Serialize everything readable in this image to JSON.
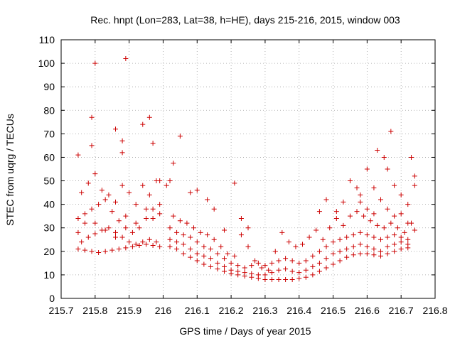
{
  "chart_data": {
    "type": "scatter",
    "title": "Rec. hnpt (Lon=283, Lat=38, h=HE), days 215-216, 2015, window 003",
    "xlabel": "GPS time / Days of year 2015",
    "ylabel": "STEC from uqrg / TECUs",
    "xlim": [
      215.7,
      216.8
    ],
    "ylim": [
      0,
      110
    ],
    "xticks": [
      "215.7",
      "215.8",
      "215.9",
      "216",
      "216.1",
      "216.2",
      "216.3",
      "216.4",
      "216.5",
      "216.6",
      "216.7",
      "216.8"
    ],
    "yticks": [
      "0",
      "10",
      "20",
      "30",
      "40",
      "50",
      "60",
      "70",
      "80",
      "90",
      "100",
      "110"
    ],
    "grid": true,
    "marker": "+",
    "color": "#cc0000",
    "points": [
      [
        215.75,
        21
      ],
      [
        215.77,
        20.5
      ],
      [
        215.79,
        20
      ],
      [
        215.81,
        19.5
      ],
      [
        215.83,
        20
      ],
      [
        215.85,
        20.5
      ],
      [
        215.87,
        21
      ],
      [
        215.89,
        21.5
      ],
      [
        215.91,
        22
      ],
      [
        215.93,
        22.5
      ],
      [
        215.95,
        23
      ],
      [
        215.97,
        22.5
      ],
      [
        215.99,
        22
      ],
      [
        215.76,
        24
      ],
      [
        215.78,
        26
      ],
      [
        215.8,
        27.5
      ],
      [
        215.82,
        29
      ],
      [
        215.84,
        30
      ],
      [
        215.86,
        28
      ],
      [
        215.88,
        26
      ],
      [
        215.9,
        24
      ],
      [
        215.92,
        23
      ],
      [
        215.94,
        24
      ],
      [
        215.96,
        25
      ],
      [
        215.98,
        24
      ],
      [
        215.75,
        34
      ],
      [
        215.77,
        36
      ],
      [
        215.79,
        38
      ],
      [
        215.81,
        40
      ],
      [
        215.83,
        42
      ],
      [
        215.85,
        37
      ],
      [
        215.87,
        33
      ],
      [
        215.89,
        30
      ],
      [
        215.91,
        28
      ],
      [
        215.93,
        30
      ],
      [
        215.95,
        34
      ],
      [
        215.97,
        38
      ],
      [
        215.99,
        36
      ],
      [
        215.76,
        45
      ],
      [
        215.78,
        49
      ],
      [
        215.8,
        53
      ],
      [
        215.82,
        46
      ],
      [
        215.84,
        44
      ],
      [
        215.86,
        41
      ],
      [
        215.88,
        48
      ],
      [
        215.9,
        45
      ],
      [
        215.92,
        40
      ],
      [
        215.94,
        48
      ],
      [
        215.96,
        44
      ],
      [
        215.98,
        50
      ],
      [
        215.75,
        61
      ],
      [
        215.79,
        65
      ],
      [
        215.79,
        77
      ],
      [
        215.8,
        100
      ],
      [
        215.86,
        72
      ],
      [
        215.88,
        62
      ],
      [
        215.88,
        67
      ],
      [
        215.89,
        102
      ],
      [
        215.94,
        74
      ],
      [
        215.96,
        77
      ],
      [
        215.97,
        66
      ],
      [
        215.99,
        50
      ],
      [
        215.75,
        28
      ],
      [
        215.77,
        32
      ],
      [
        215.8,
        32
      ],
      [
        215.83,
        29
      ],
      [
        215.86,
        26
      ],
      [
        215.89,
        35
      ],
      [
        215.92,
        32
      ],
      [
        215.95,
        38
      ],
      [
        215.97,
        34
      ],
      [
        215.99,
        40
      ],
      [
        216.02,
        22
      ],
      [
        216.04,
        21
      ],
      [
        216.06,
        19
      ],
      [
        216.08,
        17.5
      ],
      [
        216.1,
        16
      ],
      [
        216.12,
        14.5
      ],
      [
        216.14,
        13.5
      ],
      [
        216.16,
        12.5
      ],
      [
        216.18,
        11.5
      ],
      [
        216.2,
        10.5
      ],
      [
        216.22,
        10
      ],
      [
        216.24,
        9.5
      ],
      [
        216.26,
        9
      ],
      [
        216.28,
        8.5
      ],
      [
        216.3,
        8
      ],
      [
        216.32,
        8
      ],
      [
        216.34,
        8
      ],
      [
        216.36,
        8
      ],
      [
        216.38,
        8
      ],
      [
        216.4,
        8.5
      ],
      [
        216.42,
        9
      ],
      [
        216.44,
        10
      ],
      [
        216.46,
        11.5
      ],
      [
        216.48,
        13
      ],
      [
        216.5,
        14.5
      ],
      [
        216.52,
        16
      ],
      [
        216.54,
        17.5
      ],
      [
        216.56,
        18.5
      ],
      [
        216.58,
        19
      ],
      [
        216.6,
        19
      ],
      [
        216.62,
        18.5
      ],
      [
        216.64,
        18
      ],
      [
        216.66,
        19
      ],
      [
        216.68,
        20
      ],
      [
        216.7,
        21
      ],
      [
        216.72,
        21.5
      ],
      [
        216.02,
        25
      ],
      [
        216.04,
        24
      ],
      [
        216.06,
        23
      ],
      [
        216.08,
        21
      ],
      [
        216.1,
        19
      ],
      [
        216.12,
        18
      ],
      [
        216.14,
        17
      ],
      [
        216.16,
        15
      ],
      [
        216.18,
        13.5
      ],
      [
        216.2,
        12
      ],
      [
        216.22,
        11.5
      ],
      [
        216.24,
        11
      ],
      [
        216.26,
        10.5
      ],
      [
        216.28,
        10
      ],
      [
        216.3,
        10
      ],
      [
        216.32,
        11
      ],
      [
        216.34,
        12
      ],
      [
        216.36,
        12.5
      ],
      [
        216.38,
        11.5
      ],
      [
        216.4,
        11
      ],
      [
        216.42,
        12
      ],
      [
        216.44,
        13.5
      ],
      [
        216.46,
        15
      ],
      [
        216.48,
        17
      ],
      [
        216.5,
        19
      ],
      [
        216.52,
        20
      ],
      [
        216.54,
        21
      ],
      [
        216.56,
        22
      ],
      [
        216.58,
        23
      ],
      [
        216.6,
        22
      ],
      [
        216.62,
        21
      ],
      [
        216.64,
        20
      ],
      [
        216.66,
        22
      ],
      [
        216.68,
        23
      ],
      [
        216.7,
        24
      ],
      [
        216.72,
        23
      ],
      [
        216.02,
        30
      ],
      [
        216.04,
        28
      ],
      [
        216.06,
        27
      ],
      [
        216.08,
        26
      ],
      [
        216.1,
        24
      ],
      [
        216.12,
        22
      ],
      [
        216.14,
        21
      ],
      [
        216.16,
        19
      ],
      [
        216.18,
        17
      ],
      [
        216.2,
        15
      ],
      [
        216.22,
        14
      ],
      [
        216.24,
        13
      ],
      [
        216.26,
        14
      ],
      [
        216.28,
        15
      ],
      [
        216.3,
        14
      ],
      [
        216.32,
        15
      ],
      [
        216.34,
        16
      ],
      [
        216.36,
        17
      ],
      [
        216.38,
        16
      ],
      [
        216.4,
        15
      ],
      [
        216.42,
        16
      ],
      [
        216.44,
        18
      ],
      [
        216.46,
        20
      ],
      [
        216.48,
        22
      ],
      [
        216.5,
        24
      ],
      [
        216.52,
        25
      ],
      [
        216.54,
        26
      ],
      [
        216.56,
        27
      ],
      [
        216.58,
        28
      ],
      [
        216.6,
        27
      ],
      [
        216.62,
        26
      ],
      [
        216.64,
        25
      ],
      [
        216.66,
        26
      ],
      [
        216.68,
        27
      ],
      [
        216.7,
        26
      ],
      [
        216.72,
        25
      ],
      [
        216.03,
        35
      ],
      [
        216.05,
        33
      ],
      [
        216.07,
        32
      ],
      [
        216.09,
        30
      ],
      [
        216.11,
        28
      ],
      [
        216.13,
        27
      ],
      [
        216.15,
        25
      ],
      [
        216.17,
        22
      ],
      [
        216.19,
        19
      ],
      [
        216.21,
        18
      ],
      [
        216.23,
        27
      ],
      [
        216.25,
        22
      ],
      [
        216.27,
        16
      ],
      [
        216.29,
        13
      ],
      [
        216.31,
        12
      ],
      [
        216.33,
        20
      ],
      [
        216.35,
        28
      ],
      [
        216.37,
        24
      ],
      [
        216.39,
        22
      ],
      [
        216.41,
        23
      ],
      [
        216.43,
        26
      ],
      [
        216.45,
        29
      ],
      [
        216.47,
        25
      ],
      [
        216.49,
        30
      ],
      [
        216.51,
        34
      ],
      [
        216.53,
        31
      ],
      [
        216.55,
        35
      ],
      [
        216.57,
        37
      ],
      [
        216.59,
        35
      ],
      [
        216.61,
        33
      ],
      [
        216.63,
        31
      ],
      [
        216.65,
        30
      ],
      [
        216.67,
        32
      ],
      [
        216.69,
        30
      ],
      [
        216.71,
        28
      ],
      [
        216.73,
        32
      ],
      [
        216.01,
        48
      ],
      [
        216.02,
        50
      ],
      [
        216.03,
        57.5
      ],
      [
        216.05,
        69
      ],
      [
        216.08,
        45
      ],
      [
        216.1,
        46
      ],
      [
        216.13,
        42
      ],
      [
        216.15,
        38
      ],
      [
        216.18,
        29
      ],
      [
        216.21,
        49
      ],
      [
        216.23,
        34
      ],
      [
        216.25,
        30
      ],
      [
        216.46,
        37
      ],
      [
        216.48,
        42
      ],
      [
        216.51,
        37
      ],
      [
        216.53,
        41
      ],
      [
        216.55,
        50
      ],
      [
        216.57,
        47
      ],
      [
        216.58,
        44
      ],
      [
        216.6,
        55
      ],
      [
        216.62,
        47
      ],
      [
        216.63,
        63
      ],
      [
        216.65,
        60
      ],
      [
        216.66,
        55
      ],
      [
        216.67,
        71
      ],
      [
        216.68,
        48
      ],
      [
        216.7,
        44
      ],
      [
        216.72,
        40
      ],
      [
        216.73,
        60
      ],
      [
        216.74,
        52
      ],
      [
        216.58,
        41
      ],
      [
        216.6,
        38
      ],
      [
        216.62,
        36
      ],
      [
        216.64,
        42
      ],
      [
        216.66,
        38
      ],
      [
        216.68,
        35
      ],
      [
        216.7,
        36
      ],
      [
        216.72,
        32
      ],
      [
        216.74,
        29
      ],
      [
        216.74,
        48
      ]
    ]
  }
}
